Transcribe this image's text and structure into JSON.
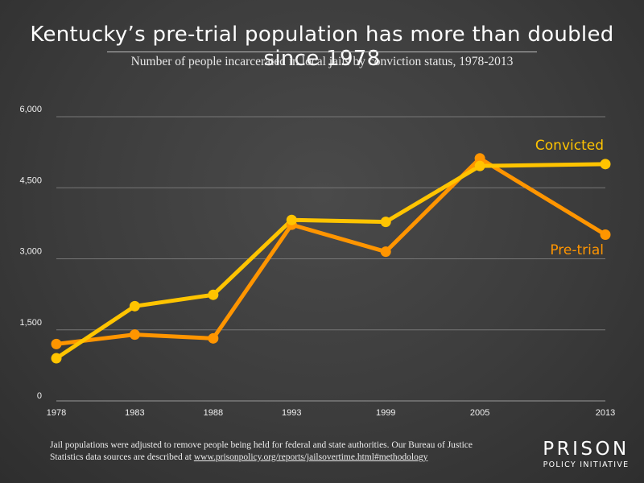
{
  "chart_data": {
    "type": "line",
    "title": "Kentucky’s pre-trial population has more than doubled since 1978",
    "subtitle": "Number of people incarcerated in local jails by conviction status, 1978-2013",
    "x": [
      1978,
      1983,
      1988,
      1993,
      1999,
      2005,
      2013
    ],
    "x_tick_labels": [
      "1978",
      "1983",
      "1988",
      "1993",
      "1999",
      "2005",
      "2013"
    ],
    "y_tick_values": [
      0,
      1500,
      3000,
      4500,
      6000
    ],
    "y_tick_labels": [
      "0",
      "1,500",
      "3,000",
      "4,500",
      "6,000"
    ],
    "ylim": [
      0,
      6000
    ],
    "grid": true,
    "series": [
      {
        "name": "Convicted",
        "color": "#FFC400",
        "values": [
          900,
          2000,
          2240,
          3820,
          3780,
          4960,
          5000
        ]
      },
      {
        "name": "Pre-trial",
        "color": "#FF9500",
        "values": [
          1200,
          1400,
          1320,
          3720,
          3150,
          5120,
          3510
        ]
      }
    ]
  },
  "footer": {
    "text": "Jail populations were adjusted to remove people being held for federal and state authorities. Our Bureau of Justice Statistics data sources are described at ",
    "link": "www.prisonpolicy.org/reports/jailsovertime.html#methodology"
  },
  "logo": {
    "main": "PRISON",
    "sub": "POLICY INITIATIVE"
  }
}
